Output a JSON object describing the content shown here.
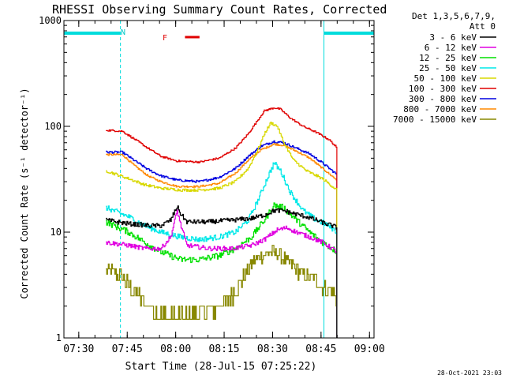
{
  "chart_data": {
    "type": "line",
    "title": "RHESSI Observing Summary Count Rates, Corrected",
    "xlabel": "Start Time (28-Jul-15 07:25:22)",
    "ylabel": "Corrected Count Rate (s⁻¹ detector⁻¹)",
    "yscale": "log",
    "ylim": [
      1,
      1000
    ],
    "xlim_minutes": [
      0,
      96
    ],
    "x_ticks": [
      {
        "label": "07:30",
        "t": 4.6
      },
      {
        "label": "07:45",
        "t": 19.6
      },
      {
        "label": "08:00",
        "t": 34.6
      },
      {
        "label": "08:15",
        "t": 49.6
      },
      {
        "label": "08:30",
        "t": 64.6
      },
      {
        "label": "08:45",
        "t": 79.6
      },
      {
        "label": "09:00",
        "t": 94.6
      }
    ],
    "y_ticks": [
      {
        "label": "1",
        "v": 1
      },
      {
        "label": "10",
        "v": 10
      },
      {
        "label": "100",
        "v": 100
      },
      {
        "label": "1000",
        "v": 1000
      }
    ],
    "legend_header": [
      "Det 1,3,5,6,7,9,",
      "Att 0"
    ],
    "legend_position": "right",
    "annotations": {
      "night_marker": "N",
      "flare_marker": "F",
      "timestamp": "28-Oct-2021 23:03"
    },
    "night_intervals": [
      {
        "start": 0,
        "end": 17.5
      },
      {
        "start": 80.5,
        "end": 96
      }
    ],
    "dashed_times": [
      17.5,
      96
    ],
    "solid_times": [
      0,
      80.5
    ],
    "flare_interval": {
      "start": 36.5,
      "end": 41
    },
    "data_start": 13,
    "data_end": 84.5,
    "series": [
      {
        "name": "3 - 6 keV",
        "color": "#000000",
        "noise": 0.05,
        "points": [
          [
            13,
            13
          ],
          [
            20,
            12
          ],
          [
            27,
            11.5
          ],
          [
            30,
            11.5
          ],
          [
            33,
            13
          ],
          [
            35,
            17.5
          ],
          [
            36,
            15
          ],
          [
            38,
            12.5
          ],
          [
            45,
            12.5
          ],
          [
            52,
            13
          ],
          [
            58,
            13.5
          ],
          [
            62,
            14.5
          ],
          [
            65,
            16
          ],
          [
            68,
            16
          ],
          [
            71,
            15
          ],
          [
            75,
            14
          ],
          [
            78,
            13
          ],
          [
            81,
            12
          ],
          [
            83,
            11.5
          ],
          [
            84.5,
            11
          ]
        ]
      },
      {
        "name": "6 - 12 keV",
        "color": "#e000e0",
        "noise": 0.05,
        "points": [
          [
            13,
            8
          ],
          [
            20,
            7.5
          ],
          [
            25,
            7
          ],
          [
            30,
            7
          ],
          [
            33,
            9
          ],
          [
            35,
            16
          ],
          [
            36,
            12
          ],
          [
            38,
            7.5
          ],
          [
            45,
            7
          ],
          [
            52,
            7
          ],
          [
            58,
            7.5
          ],
          [
            62,
            8.5
          ],
          [
            66,
            10.5
          ],
          [
            69,
            11
          ],
          [
            72,
            10
          ],
          [
            76,
            9
          ],
          [
            80,
            8
          ],
          [
            83,
            7
          ],
          [
            84.5,
            6.5
          ]
        ]
      },
      {
        "name": "12 - 25 keV",
        "color": "#00e000",
        "noise": 0.07,
        "points": [
          [
            13,
            12.5
          ],
          [
            20,
            10
          ],
          [
            25,
            8
          ],
          [
            30,
            6.5
          ],
          [
            36,
            5.5
          ],
          [
            42,
            5.5
          ],
          [
            48,
            6
          ],
          [
            53,
            7
          ],
          [
            58,
            9
          ],
          [
            62,
            13
          ],
          [
            65,
            18
          ],
          [
            68,
            17
          ],
          [
            72,
            13
          ],
          [
            76,
            10
          ],
          [
            80,
            8
          ],
          [
            83,
            7
          ],
          [
            84.5,
            6.5
          ]
        ]
      },
      {
        "name": "25 - 50 keV",
        "color": "#00e8e8",
        "noise": 0.06,
        "points": [
          [
            13,
            17
          ],
          [
            20,
            14
          ],
          [
            25,
            11.5
          ],
          [
            30,
            10
          ],
          [
            36,
            9
          ],
          [
            42,
            8.5
          ],
          [
            48,
            9
          ],
          [
            53,
            10
          ],
          [
            57,
            13
          ],
          [
            60,
            20
          ],
          [
            63,
            33
          ],
          [
            65,
            45
          ],
          [
            67,
            38
          ],
          [
            70,
            24
          ],
          [
            74,
            16
          ],
          [
            78,
            13
          ],
          [
            81,
            12
          ],
          [
            84.5,
            10
          ]
        ]
      },
      {
        "name": "50 - 100 keV",
        "color": "#d8d800",
        "noise": 0.03,
        "points": [
          [
            13,
            38
          ],
          [
            20,
            32
          ],
          [
            25,
            28
          ],
          [
            30,
            26
          ],
          [
            36,
            25
          ],
          [
            42,
            25
          ],
          [
            48,
            26
          ],
          [
            53,
            30
          ],
          [
            57,
            40
          ],
          [
            60,
            60
          ],
          [
            62,
            85
          ],
          [
            64,
            108
          ],
          [
            66,
            100
          ],
          [
            68,
            70
          ],
          [
            71,
            48
          ],
          [
            75,
            38
          ],
          [
            80,
            32
          ],
          [
            84.5,
            25
          ]
        ]
      },
      {
        "name": "100 - 300 keV",
        "color": "#e00000",
        "noise": 0.02,
        "points": [
          [
            13,
            92
          ],
          [
            18,
            90
          ],
          [
            22,
            75
          ],
          [
            26,
            62
          ],
          [
            30,
            52
          ],
          [
            35,
            47
          ],
          [
            42,
            46
          ],
          [
            48,
            50
          ],
          [
            53,
            62
          ],
          [
            57,
            85
          ],
          [
            60,
            115
          ],
          [
            62,
            140
          ],
          [
            65,
            150
          ],
          [
            67,
            145
          ],
          [
            70,
            120
          ],
          [
            74,
            100
          ],
          [
            78,
            88
          ],
          [
            82,
            75
          ],
          [
            84,
            65
          ],
          [
            84.5,
            60
          ]
        ]
      },
      {
        "name": "300 - 800 keV",
        "color": "#0000e0",
        "noise": 0.025,
        "points": [
          [
            13,
            57
          ],
          [
            18,
            57
          ],
          [
            22,
            47
          ],
          [
            26,
            39
          ],
          [
            30,
            34
          ],
          [
            35,
            31
          ],
          [
            42,
            30
          ],
          [
            48,
            33
          ],
          [
            53,
            40
          ],
          [
            57,
            52
          ],
          [
            61,
            65
          ],
          [
            65,
            72
          ],
          [
            68,
            70
          ],
          [
            72,
            62
          ],
          [
            76,
            55
          ],
          [
            80,
            45
          ],
          [
            84.5,
            35
          ]
        ]
      },
      {
        "name": "800 - 7000 keV",
        "color": "#ff8800",
        "noise": 0.02,
        "points": [
          [
            13,
            54
          ],
          [
            18,
            54
          ],
          [
            22,
            42
          ],
          [
            26,
            34
          ],
          [
            30,
            30
          ],
          [
            35,
            27
          ],
          [
            42,
            27
          ],
          [
            48,
            29
          ],
          [
            53,
            36
          ],
          [
            57,
            48
          ],
          [
            61,
            60
          ],
          [
            65,
            68
          ],
          [
            68,
            66
          ],
          [
            72,
            58
          ],
          [
            76,
            50
          ],
          [
            80,
            40
          ],
          [
            84.5,
            31
          ]
        ]
      },
      {
        "name": "7000 - 15000 keV",
        "color": "#888800",
        "noise": 0.16,
        "points": [
          [
            13,
            4.5
          ],
          [
            17,
            4
          ],
          [
            20,
            3.2
          ],
          [
            23,
            2.5
          ],
          [
            26,
            2
          ],
          [
            30,
            1.7
          ],
          [
            36,
            1.6
          ],
          [
            42,
            1.7
          ],
          [
            47,
            1.8
          ],
          [
            51,
            2.3
          ],
          [
            55,
            3.5
          ],
          [
            58,
            5
          ],
          [
            61,
            6
          ],
          [
            64,
            6.5
          ],
          [
            67,
            6
          ],
          [
            70,
            5
          ],
          [
            74,
            4
          ],
          [
            78,
            3.5
          ],
          [
            81,
            3
          ],
          [
            84.5,
            2.5
          ]
        ]
      }
    ]
  }
}
